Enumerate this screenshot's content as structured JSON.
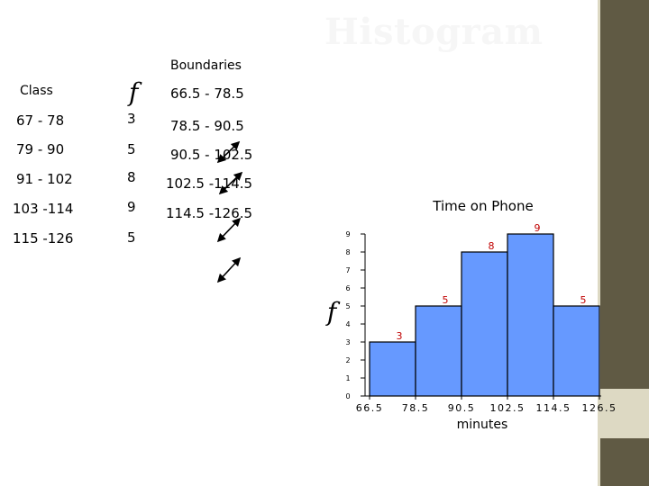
{
  "slide": {
    "title": "Histogram"
  },
  "table": {
    "headers": {
      "class": "Class",
      "frequency": "f",
      "boundaries": "Boundaries"
    },
    "rows": [
      {
        "class": "67 - 78",
        "frequency": "3",
        "boundary": "66.5 - 78.5"
      },
      {
        "class": "79 - 90",
        "frequency": "5",
        "boundary": "78.5 - 90.5"
      },
      {
        "class": "91 - 102",
        "frequency": "8",
        "boundary": "90.5 - 102.5"
      },
      {
        "class": "103 -114",
        "frequency": "9",
        "boundary": "102.5 -114.5"
      },
      {
        "class": "115 -126",
        "frequency": "5",
        "boundary": "114.5 -126.5"
      }
    ]
  },
  "chart_data": {
    "type": "bar",
    "title": "Time on Phone",
    "xlabel": "minutes",
    "ylabel": "f",
    "x_ticks": [
      "66.5",
      "78.5",
      "90.5",
      "102.5",
      "114.5",
      "126.5"
    ],
    "y_ticks": [
      "0",
      "1",
      "2",
      "3",
      "4",
      "5",
      "6",
      "7",
      "8",
      "9"
    ],
    "bins": [
      [
        66.5,
        78.5
      ],
      [
        78.5,
        90.5
      ],
      [
        90.5,
        102.5
      ],
      [
        102.5,
        114.5
      ],
      [
        114.5,
        126.5
      ]
    ],
    "values": [
      3,
      5,
      8,
      9,
      5
    ],
    "data_labels": [
      "3",
      "5",
      "8",
      "9",
      "5"
    ],
    "ylim": [
      0,
      9
    ],
    "grid": false,
    "bar_color": "#6699ff",
    "label_color": "#c00000"
  }
}
